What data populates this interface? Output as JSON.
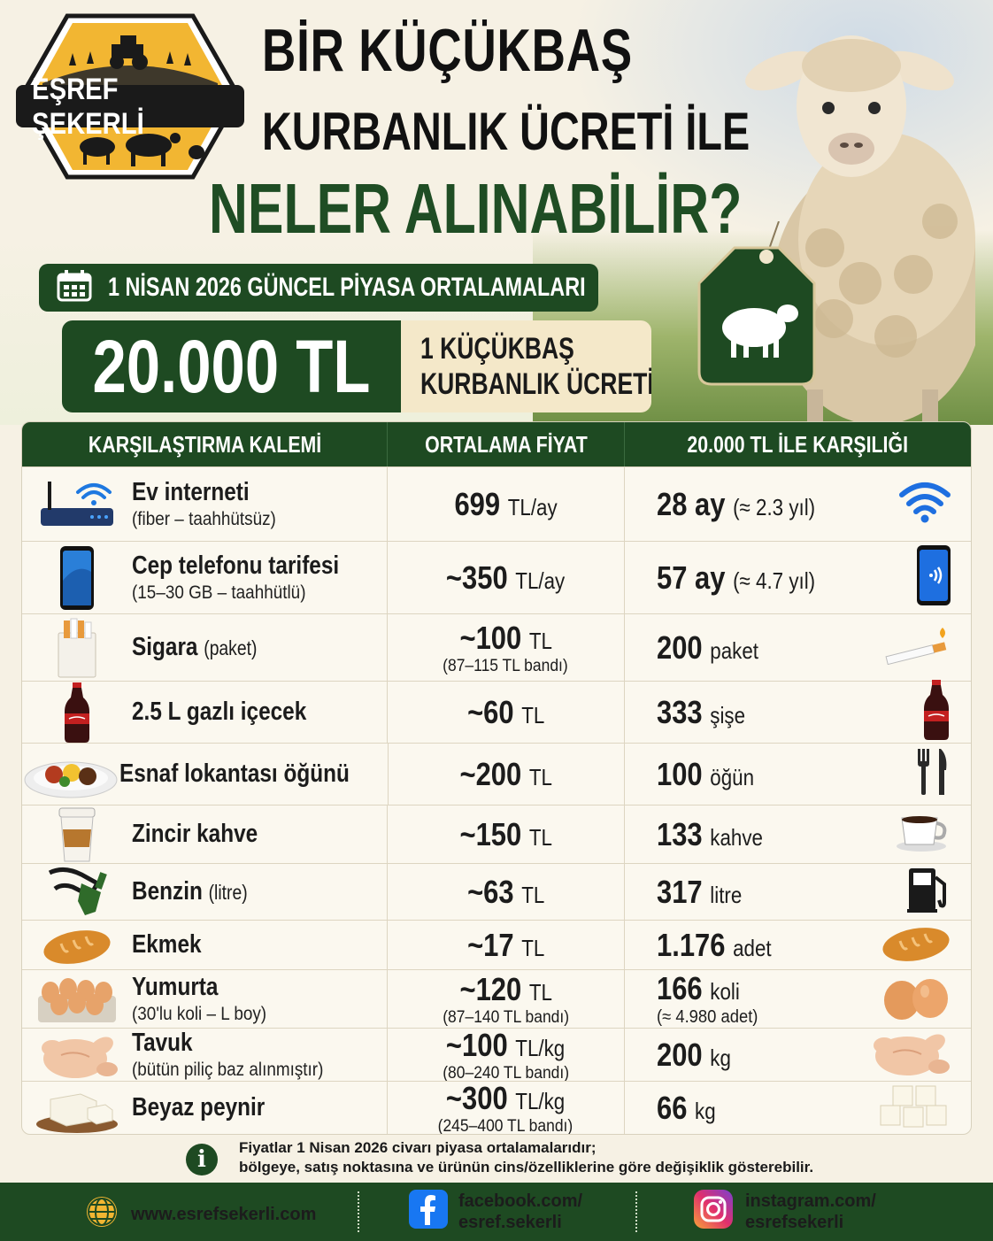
{
  "brand": {
    "name": "EŞREF ŞEKERLİ"
  },
  "header": {
    "title_line1": "BİR KÜÇÜKBAŞ",
    "title_line2": "KURBANLIK ÜCRETİ İLE",
    "title_line3": "NELER ALINABİLİR?",
    "date_label": "1 NİSAN 2026 GÜNCEL PİYASA ORTALAMALARI",
    "price_value": "20.000 TL",
    "price_caption_line1": "1 KÜÇÜKBAŞ",
    "price_caption_line2": "KURBANLIK ÜCRETİ"
  },
  "table": {
    "headers": [
      "KARŞILAŞTIRMA KALEMİ",
      "ORTALAMA FİYAT",
      "20.000 TL İLE KARŞILIĞI"
    ],
    "rows": [
      {
        "icon": "router-icon",
        "icon2": "wifi-icon",
        "name": "Ev interneti",
        "name_paren": "",
        "sub": "(fiber – taahhütsüz)",
        "price": "699",
        "price_unit": "TL/ay",
        "band": "",
        "amount": "28 ay",
        "amount_unit": "(≈ 2.3 yıl)",
        "amount_note": ""
      },
      {
        "icon": "phone-icon",
        "icon2": "smartphone-signal-icon",
        "name": "Cep telefonu tarifesi",
        "name_paren": "",
        "sub": "(15–30 GB – taahhütlü)",
        "price": "~350",
        "price_unit": "TL/ay",
        "band": "",
        "amount": "57 ay",
        "amount_unit": "(≈ 4.7 yıl)",
        "amount_note": ""
      },
      {
        "icon": "cigarette-pack-icon",
        "icon2": "cigarette-icon",
        "name": "Sigara",
        "name_paren": "(paket)",
        "sub": "",
        "price": "~100",
        "price_unit": "TL",
        "band": "(87–115 TL bandı)",
        "amount": "200",
        "amount_unit": "paket",
        "amount_note": ""
      },
      {
        "icon": "soda-bottle-icon",
        "icon2": "soda-bottle-icon",
        "name": "2.5 L gazlı içecek",
        "name_paren": "",
        "sub": "",
        "price": "~60",
        "price_unit": "TL",
        "band": "",
        "amount": "333",
        "amount_unit": "şişe",
        "amount_note": ""
      },
      {
        "icon": "meal-plate-icon",
        "icon2": "fork-knife-icon",
        "name": "Esnaf lokantası öğünü",
        "name_paren": "",
        "sub": "",
        "price": "~200",
        "price_unit": "TL",
        "band": "",
        "amount": "100",
        "amount_unit": "öğün",
        "amount_note": ""
      },
      {
        "icon": "coffee-cup-icon",
        "icon2": "coffee-mug-icon",
        "name": "Zincir kahve",
        "name_paren": "",
        "sub": "",
        "price": "~150",
        "price_unit": "TL",
        "band": "",
        "amount": "133",
        "amount_unit": "kahve",
        "amount_note": ""
      },
      {
        "icon": "fuel-nozzle-icon",
        "icon2": "fuel-pump-icon",
        "name": "Benzin",
        "name_paren": "(litre)",
        "sub": "",
        "price": "~63",
        "price_unit": "TL",
        "band": "",
        "amount": "317",
        "amount_unit": "litre",
        "amount_note": ""
      },
      {
        "icon": "bread-icon",
        "icon2": "bread-icon",
        "name": "Ekmek",
        "name_paren": "",
        "sub": "",
        "price": "~17",
        "price_unit": "TL",
        "band": "",
        "amount": "1.176",
        "amount_unit": "adet",
        "amount_note": ""
      },
      {
        "icon": "egg-tray-icon",
        "icon2": "eggs-icon",
        "name": "Yumurta",
        "name_paren": "",
        "sub": "(30'lu koli – L boy)",
        "price": "~120",
        "price_unit": "TL",
        "band": "(87–140 TL bandı)",
        "amount": "166",
        "amount_unit": "koli",
        "amount_note": "(≈ 4.980 adet)"
      },
      {
        "icon": "chicken-icon",
        "icon2": "chicken-icon",
        "name": "Tavuk",
        "name_paren": "",
        "sub": "(bütün piliç baz alınmıştır)",
        "price": "~100",
        "price_unit": "TL/kg",
        "band": "(80–240 TL bandı)",
        "amount": "200",
        "amount_unit": "kg",
        "amount_note": ""
      },
      {
        "icon": "cheese-icon",
        "icon2": "cheese-cubes-icon",
        "name": "Beyaz peynir",
        "name_paren": "",
        "sub": "",
        "price": "~300",
        "price_unit": "TL/kg",
        "band": "(245–400 TL bandı)",
        "amount": "66",
        "amount_unit": "kg",
        "amount_note": ""
      }
    ]
  },
  "footnote": {
    "line1": "Fiyatlar 1 Nisan 2026 civarı piyasa ortalamalarıdır;",
    "line2": "bölgeye, satış noktasına ve ürünün cins/özelliklerine göre değişiklik gösterebilir."
  },
  "footer": {
    "website": "www.esrefsekerli.com",
    "facebook_line1": "facebook.com/",
    "facebook_line2": "esref.sekerli",
    "instagram_line1": "instagram.com/",
    "instagram_line2": "esrefsekerli"
  },
  "colors": {
    "primary_green": "#1e4a22",
    "cream": "#f6f1e4",
    "logo_yellow": "#f2b632"
  }
}
